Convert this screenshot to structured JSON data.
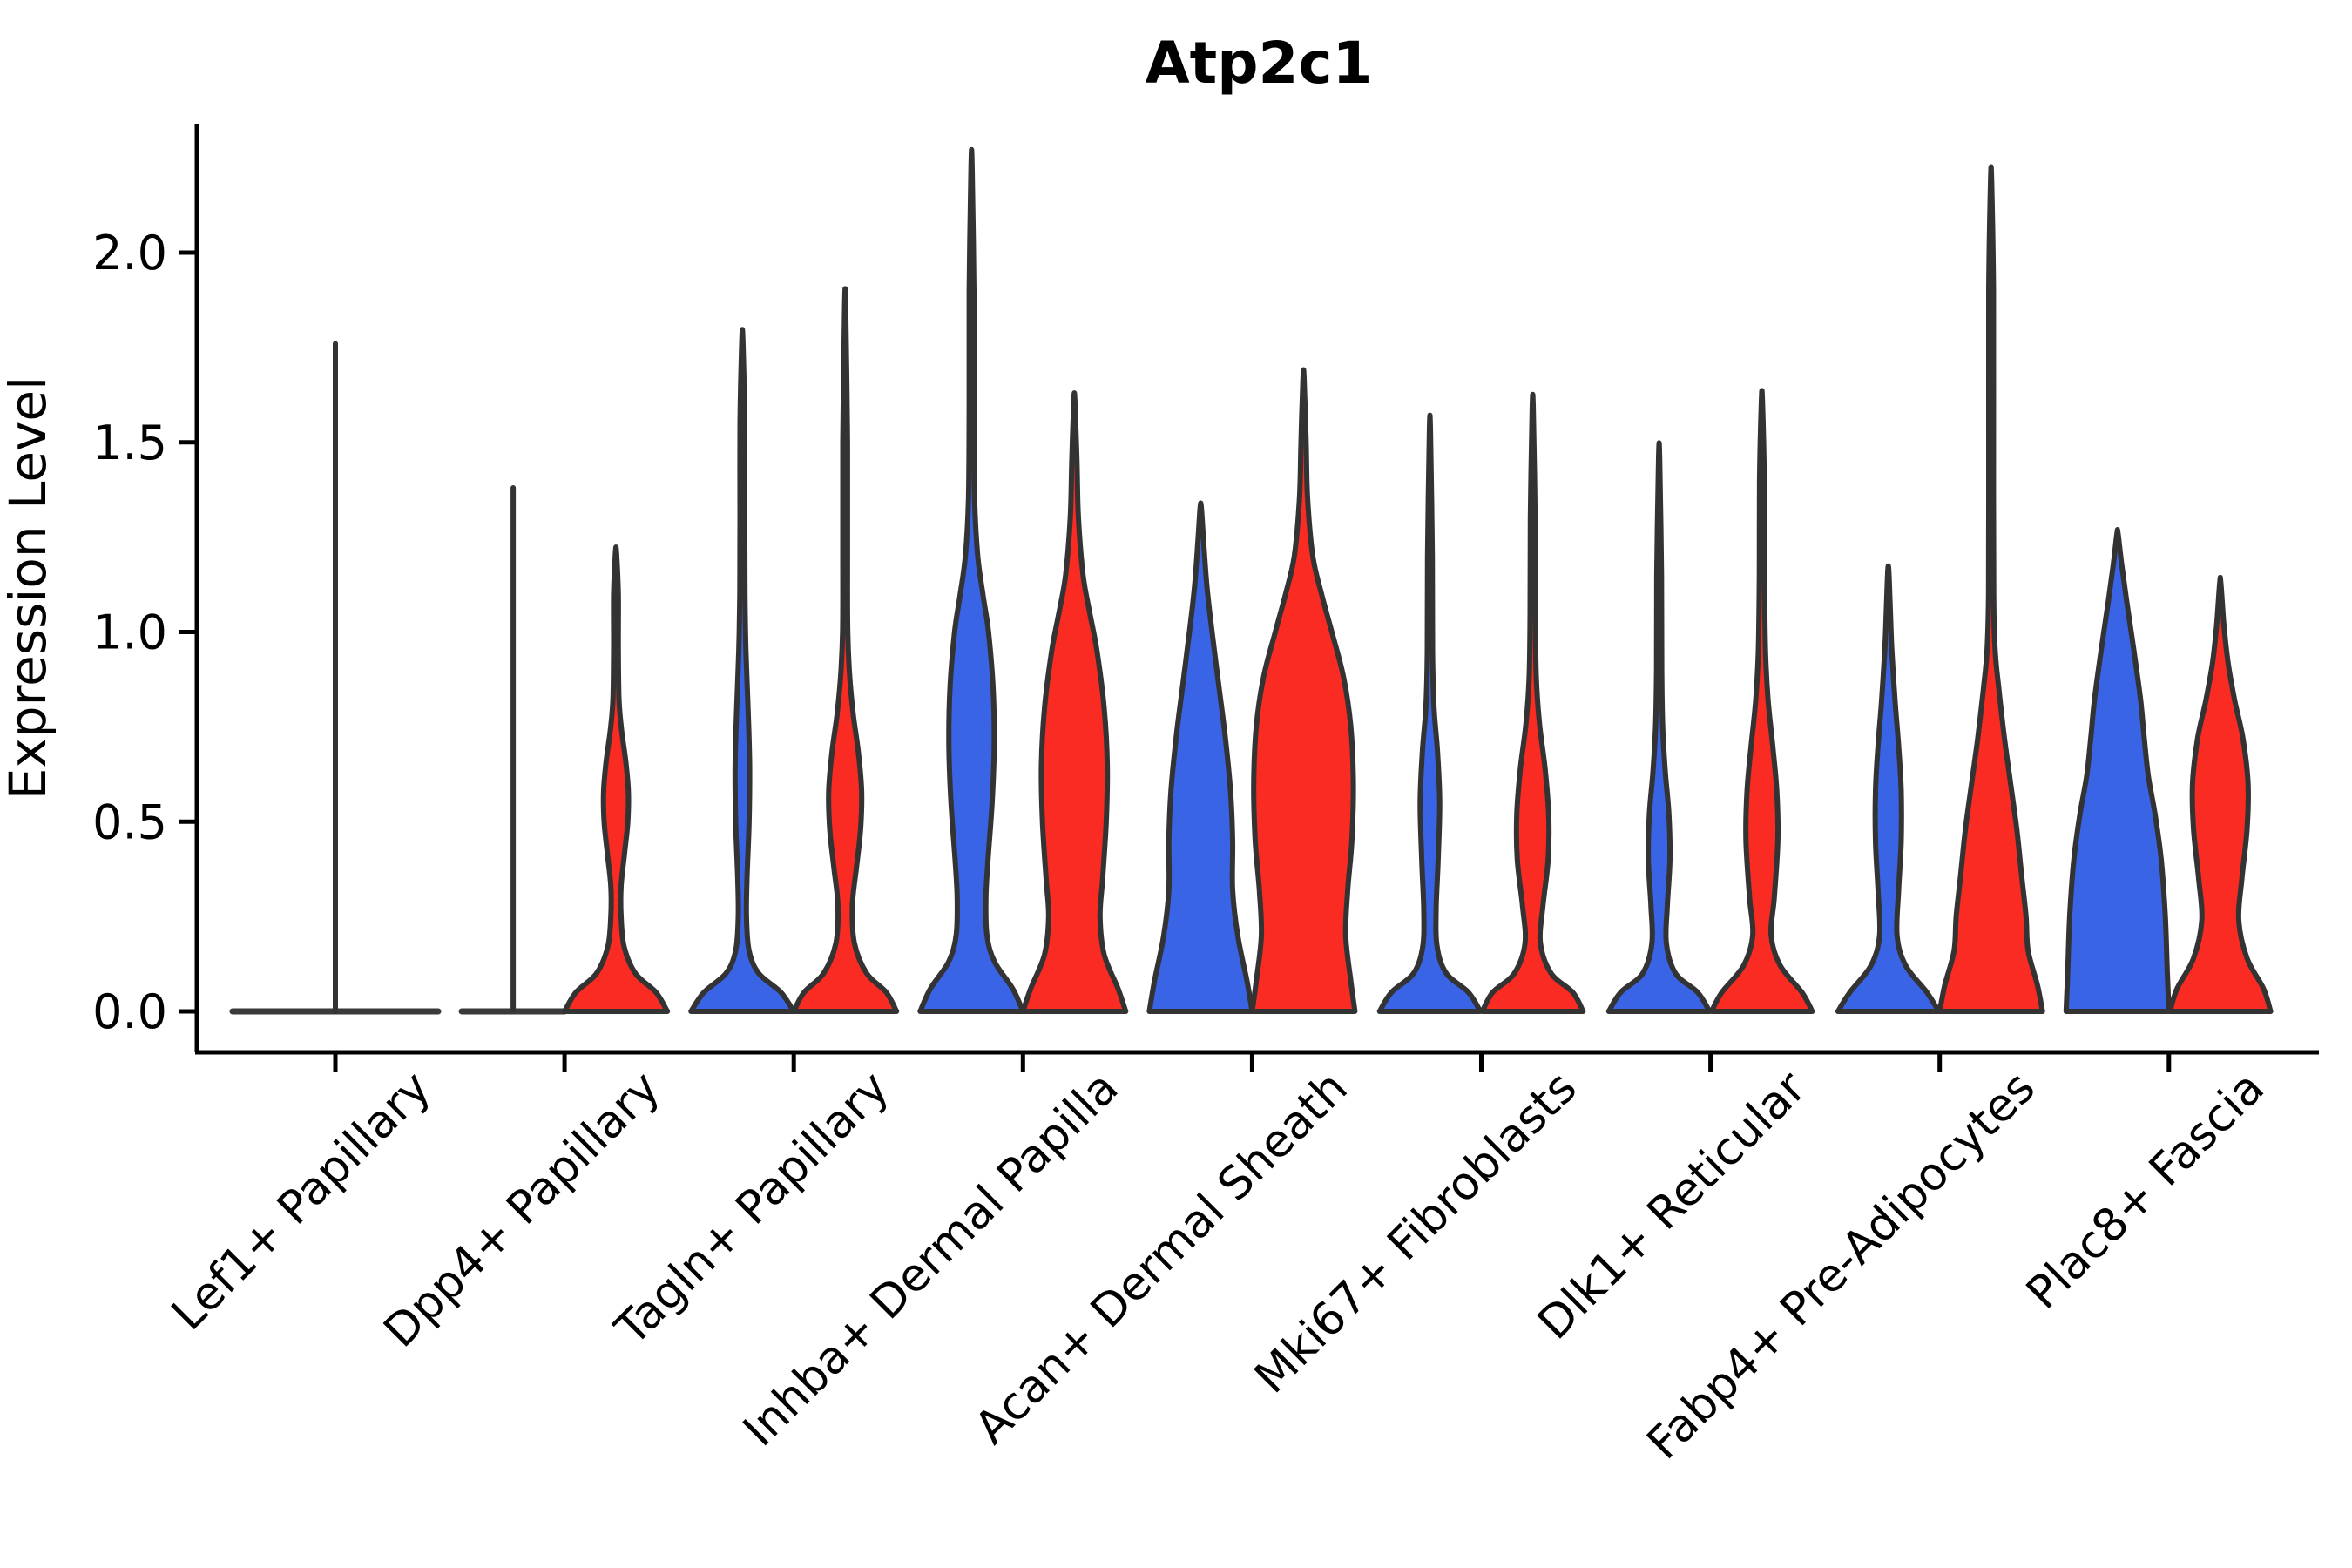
{
  "figure": {
    "title": "Atp2c1",
    "ylabel": "Expression Level"
  },
  "chart_data": {
    "type": "violin",
    "title": "Atp2c1",
    "xlabel": "",
    "ylabel": "Expression Level",
    "yticks": [
      0.0,
      0.5,
      1.0,
      1.5,
      2.0
    ],
    "ytick_labels": [
      "0.0",
      "0.5",
      "1.0",
      "1.5",
      "2.0"
    ],
    "ylim": [
      -0.11,
      2.34
    ],
    "grid": false,
    "legend_position": "none",
    "colors": {
      "left_violin": "#3A64E6",
      "right_violin": "#F92B23",
      "outline": "#333333",
      "flat_line": "#3a3a3a",
      "axis": "#000000"
    },
    "categories": [
      "Lef1+ Papillary",
      "Dpp4+ Papillary",
      "Tagln+ Papillary",
      "Inhba+ Dermal Papilla",
      "Acan+ Dermal Sheath",
      "Mki67+ Fibroblasts",
      "Dlk1+ Reticular",
      "Fabp4+ Pre-Adipocytes",
      "Plac8+ Fascia"
    ],
    "groups": [
      {
        "category": "Lef1+ Papillary",
        "center_spike_max": 1.76,
        "left": {
          "flat": true,
          "max": 0
        },
        "right": {
          "flat": true,
          "max": 0
        }
      },
      {
        "category": "Dpp4+ Papillary",
        "left": {
          "flat": true,
          "spike_max": 1.38,
          "max": 1.38
        },
        "right": {
          "max": 1.21,
          "profile": [
            [
              0,
              1.0
            ],
            [
              0.05,
              0.78
            ],
            [
              0.1,
              0.38
            ],
            [
              0.17,
              0.16
            ],
            [
              0.25,
              0.1
            ],
            [
              0.33,
              0.1
            ],
            [
              0.42,
              0.17
            ],
            [
              0.5,
              0.23
            ],
            [
              0.58,
              0.24
            ],
            [
              0.66,
              0.19
            ],
            [
              0.74,
              0.11
            ],
            [
              0.82,
              0.06
            ],
            [
              0.95,
              0.045
            ],
            [
              1.1,
              0.045
            ],
            [
              1.21,
              0.01
            ]
          ]
        }
      },
      {
        "category": "Tagln+ Papillary",
        "left": {
          "max": 1.77,
          "profile": [
            [
              0,
              1.0
            ],
            [
              0.05,
              0.75
            ],
            [
              0.1,
              0.32
            ],
            [
              0.16,
              0.13
            ],
            [
              0.25,
              0.08
            ],
            [
              0.35,
              0.09
            ],
            [
              0.5,
              0.13
            ],
            [
              0.65,
              0.14
            ],
            [
              0.8,
              0.11
            ],
            [
              0.95,
              0.07
            ],
            [
              1.1,
              0.05
            ],
            [
              1.3,
              0.045
            ],
            [
              1.55,
              0.045
            ],
            [
              1.77,
              0.01
            ]
          ]
        },
        "right": {
          "max": 1.86,
          "profile": [
            [
              0,
              1.0
            ],
            [
              0.05,
              0.8
            ],
            [
              0.1,
              0.42
            ],
            [
              0.18,
              0.18
            ],
            [
              0.28,
              0.14
            ],
            [
              0.38,
              0.22
            ],
            [
              0.48,
              0.3
            ],
            [
              0.58,
              0.32
            ],
            [
              0.68,
              0.26
            ],
            [
              0.78,
              0.16
            ],
            [
              0.88,
              0.09
            ],
            [
              1.0,
              0.05
            ],
            [
              1.2,
              0.045
            ],
            [
              1.5,
              0.045
            ],
            [
              1.86,
              0.01
            ]
          ]
        }
      },
      {
        "category": "Inhba+ Dermal Papilla",
        "left": {
          "max": 2.23,
          "profile": [
            [
              0,
              1.0
            ],
            [
              0.06,
              0.8
            ],
            [
              0.13,
              0.45
            ],
            [
              0.2,
              0.3
            ],
            [
              0.3,
              0.28
            ],
            [
              0.4,
              0.32
            ],
            [
              0.55,
              0.4
            ],
            [
              0.7,
              0.44
            ],
            [
              0.85,
              0.42
            ],
            [
              1.0,
              0.33
            ],
            [
              1.1,
              0.22
            ],
            [
              1.2,
              0.12
            ],
            [
              1.35,
              0.06
            ],
            [
              1.6,
              0.045
            ],
            [
              1.9,
              0.045
            ],
            [
              2.23,
              0.01
            ]
          ]
        },
        "right": {
          "max": 1.61,
          "profile": [
            [
              0,
              1.0
            ],
            [
              0.06,
              0.85
            ],
            [
              0.15,
              0.58
            ],
            [
              0.25,
              0.5
            ],
            [
              0.35,
              0.55
            ],
            [
              0.5,
              0.62
            ],
            [
              0.65,
              0.64
            ],
            [
              0.8,
              0.58
            ],
            [
              0.95,
              0.44
            ],
            [
              1.05,
              0.3
            ],
            [
              1.15,
              0.17
            ],
            [
              1.3,
              0.08
            ],
            [
              1.45,
              0.05
            ],
            [
              1.61,
              0.01
            ]
          ]
        }
      },
      {
        "category": "Acan+ Dermal Sheath",
        "left": {
          "max": 1.33,
          "profile": [
            [
              0,
              1.0
            ],
            [
              0.08,
              0.9
            ],
            [
              0.2,
              0.72
            ],
            [
              0.32,
              0.62
            ],
            [
              0.45,
              0.62
            ],
            [
              0.58,
              0.58
            ],
            [
              0.72,
              0.48
            ],
            [
              0.85,
              0.36
            ],
            [
              1.0,
              0.22
            ],
            [
              1.12,
              0.12
            ],
            [
              1.25,
              0.05
            ],
            [
              1.33,
              0.01
            ]
          ]
        },
        "right": {
          "max": 1.67,
          "profile": [
            [
              0,
              1.0
            ],
            [
              0.08,
              0.92
            ],
            [
              0.2,
              0.82
            ],
            [
              0.32,
              0.86
            ],
            [
              0.45,
              0.94
            ],
            [
              0.6,
              0.97
            ],
            [
              0.75,
              0.92
            ],
            [
              0.88,
              0.78
            ],
            [
              1.0,
              0.55
            ],
            [
              1.1,
              0.35
            ],
            [
              1.2,
              0.18
            ],
            [
              1.35,
              0.08
            ],
            [
              1.5,
              0.05
            ],
            [
              1.67,
              0.01
            ]
          ]
        }
      },
      {
        "category": "Mki67+ Fibroblasts",
        "left": {
          "max": 1.53,
          "profile": [
            [
              0,
              0.98
            ],
            [
              0.05,
              0.75
            ],
            [
              0.1,
              0.32
            ],
            [
              0.17,
              0.14
            ],
            [
              0.27,
              0.12
            ],
            [
              0.4,
              0.16
            ],
            [
              0.55,
              0.19
            ],
            [
              0.68,
              0.15
            ],
            [
              0.8,
              0.08
            ],
            [
              0.95,
              0.05
            ],
            [
              1.2,
              0.045
            ],
            [
              1.53,
              0.01
            ]
          ]
        },
        "right": {
          "max": 1.59,
          "profile": [
            [
              0,
              0.98
            ],
            [
              0.05,
              0.78
            ],
            [
              0.1,
              0.36
            ],
            [
              0.18,
              0.15
            ],
            [
              0.28,
              0.2
            ],
            [
              0.4,
              0.3
            ],
            [
              0.52,
              0.31
            ],
            [
              0.64,
              0.24
            ],
            [
              0.76,
              0.13
            ],
            [
              0.88,
              0.07
            ],
            [
              1.05,
              0.05
            ],
            [
              1.3,
              0.045
            ],
            [
              1.59,
              0.01
            ]
          ]
        }
      },
      {
        "category": "Dlk1+ Reticular",
        "left": {
          "max": 1.46,
          "profile": [
            [
              0,
              0.98
            ],
            [
              0.05,
              0.75
            ],
            [
              0.1,
              0.32
            ],
            [
              0.18,
              0.14
            ],
            [
              0.28,
              0.16
            ],
            [
              0.4,
              0.21
            ],
            [
              0.52,
              0.19
            ],
            [
              0.63,
              0.12
            ],
            [
              0.75,
              0.07
            ],
            [
              0.9,
              0.05
            ],
            [
              1.15,
              0.045
            ],
            [
              1.46,
              0.01
            ]
          ]
        },
        "right": {
          "max": 1.61,
          "profile": [
            [
              0,
              0.98
            ],
            [
              0.05,
              0.78
            ],
            [
              0.12,
              0.36
            ],
            [
              0.2,
              0.18
            ],
            [
              0.3,
              0.24
            ],
            [
              0.45,
              0.31
            ],
            [
              0.58,
              0.29
            ],
            [
              0.7,
              0.21
            ],
            [
              0.82,
              0.12
            ],
            [
              0.95,
              0.07
            ],
            [
              1.15,
              0.05
            ],
            [
              1.4,
              0.045
            ],
            [
              1.61,
              0.01
            ]
          ]
        }
      },
      {
        "category": "Fabp4+ Pre-Adipocytes",
        "left": {
          "max": 1.16,
          "profile": [
            [
              0,
              0.98
            ],
            [
              0.05,
              0.75
            ],
            [
              0.12,
              0.34
            ],
            [
              0.2,
              0.17
            ],
            [
              0.32,
              0.2
            ],
            [
              0.45,
              0.25
            ],
            [
              0.58,
              0.25
            ],
            [
              0.7,
              0.2
            ],
            [
              0.82,
              0.13
            ],
            [
              0.95,
              0.07
            ],
            [
              1.05,
              0.04
            ],
            [
              1.16,
              0.01
            ]
          ]
        },
        "right": {
          "max": 2.19,
          "profile": [
            [
              0,
              1.0
            ],
            [
              0.07,
              0.9
            ],
            [
              0.16,
              0.72
            ],
            [
              0.25,
              0.68
            ],
            [
              0.35,
              0.6
            ],
            [
              0.48,
              0.5
            ],
            [
              0.6,
              0.38
            ],
            [
              0.72,
              0.26
            ],
            [
              0.85,
              0.15
            ],
            [
              0.95,
              0.08
            ],
            [
              1.1,
              0.05
            ],
            [
              1.5,
              0.045
            ],
            [
              1.9,
              0.045
            ],
            [
              2.19,
              0.01
            ]
          ]
        }
      },
      {
        "category": "Plac8+ Fascia",
        "left": {
          "max": 1.26,
          "profile": [
            [
              0,
              1.0
            ],
            [
              0.1,
              0.97
            ],
            [
              0.25,
              0.93
            ],
            [
              0.4,
              0.85
            ],
            [
              0.52,
              0.73
            ],
            [
              0.62,
              0.6
            ],
            [
              0.72,
              0.52
            ],
            [
              0.82,
              0.45
            ],
            [
              0.95,
              0.32
            ],
            [
              1.08,
              0.18
            ],
            [
              1.18,
              0.08
            ],
            [
              1.26,
              0.01
            ]
          ]
        },
        "right": {
          "max": 1.13,
          "profile": [
            [
              0,
              0.98
            ],
            [
              0.06,
              0.84
            ],
            [
              0.14,
              0.52
            ],
            [
              0.24,
              0.36
            ],
            [
              0.35,
              0.42
            ],
            [
              0.48,
              0.52
            ],
            [
              0.6,
              0.54
            ],
            [
              0.72,
              0.44
            ],
            [
              0.82,
              0.28
            ],
            [
              0.92,
              0.15
            ],
            [
              1.02,
              0.07
            ],
            [
              1.13,
              0.01
            ]
          ]
        }
      }
    ]
  }
}
